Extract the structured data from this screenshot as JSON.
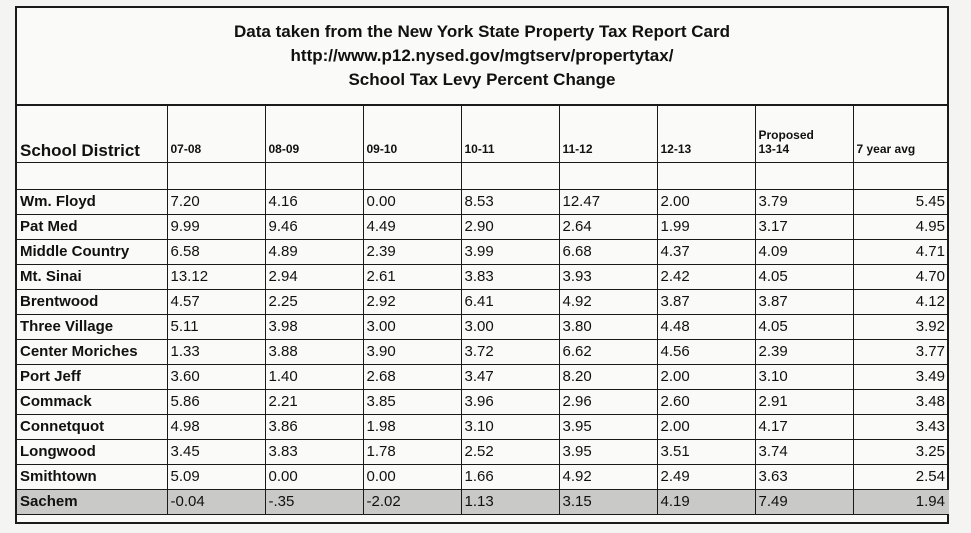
{
  "header": {
    "line1": "Data taken from the New York State Property Tax Report Card",
    "line2": "http://www.p12.nysed.gov/mgtserv/propertytax/",
    "line3": "School Tax Levy Percent Change"
  },
  "columns": {
    "district": "School District",
    "c1": "07-08",
    "c2": "08-09",
    "c3": "09-10",
    "c4": "10-11",
    "c5": "11-12",
    "c6": "12-13",
    "c7a": "Proposed",
    "c7b": "13-14",
    "c8": "7 year avg"
  },
  "rows": [
    {
      "name": "Wm. Floyd",
      "v": [
        "7.20",
        "4.16",
        "0.00",
        "8.53",
        "12.47",
        "2.00",
        "3.79",
        "5.45"
      ]
    },
    {
      "name": "Pat Med",
      "v": [
        "9.99",
        "9.46",
        "4.49",
        "2.90",
        "2.64",
        "1.99",
        "3.17",
        "4.95"
      ]
    },
    {
      "name": "Middle Country",
      "v": [
        "6.58",
        "4.89",
        "2.39",
        "3.99",
        "6.68",
        "4.37",
        "4.09",
        "4.71"
      ]
    },
    {
      "name": "Mt. Sinai",
      "v": [
        "13.12",
        "2.94",
        "2.61",
        "3.83",
        "3.93",
        "2.42",
        "4.05",
        "4.70"
      ]
    },
    {
      "name": "Brentwood",
      "v": [
        "4.57",
        "2.25",
        "2.92",
        "6.41",
        "4.92",
        "3.87",
        "3.87",
        "4.12"
      ]
    },
    {
      "name": "Three Village",
      "v": [
        "5.11",
        "3.98",
        "3.00",
        "3.00",
        "3.80",
        "4.48",
        "4.05",
        "3.92"
      ]
    },
    {
      "name": "Center Moriches",
      "v": [
        "1.33",
        "3.88",
        "3.90",
        "3.72",
        "6.62",
        "4.56",
        "2.39",
        "3.77"
      ]
    },
    {
      "name": "Port Jeff",
      "v": [
        "3.60",
        "1.40",
        "2.68",
        "3.47",
        "8.20",
        "2.00",
        "3.10",
        "3.49"
      ]
    },
    {
      "name": "Commack",
      "v": [
        "5.86",
        "2.21",
        "3.85",
        "3.96",
        "2.96",
        "2.60",
        "2.91",
        "3.48"
      ]
    },
    {
      "name": "Connetquot",
      "v": [
        "4.98",
        "3.86",
        "1.98",
        "3.10",
        "3.95",
        "2.00",
        "4.17",
        "3.43"
      ]
    },
    {
      "name": "Longwood",
      "v": [
        "3.45",
        "3.83",
        "1.78",
        "2.52",
        "3.95",
        "3.51",
        "3.74",
        "3.25"
      ]
    },
    {
      "name": "Smithtown",
      "v": [
        "5.09",
        "0.00",
        "0.00",
        "1.66",
        "4.92",
        "2.49",
        "3.63",
        "2.54"
      ]
    },
    {
      "name": "Sachem",
      "v": [
        "-0.04",
        "-.35",
        "-2.02",
        "1.13",
        "3.15",
        "4.19",
        "7.49",
        "1.94"
      ]
    }
  ]
}
